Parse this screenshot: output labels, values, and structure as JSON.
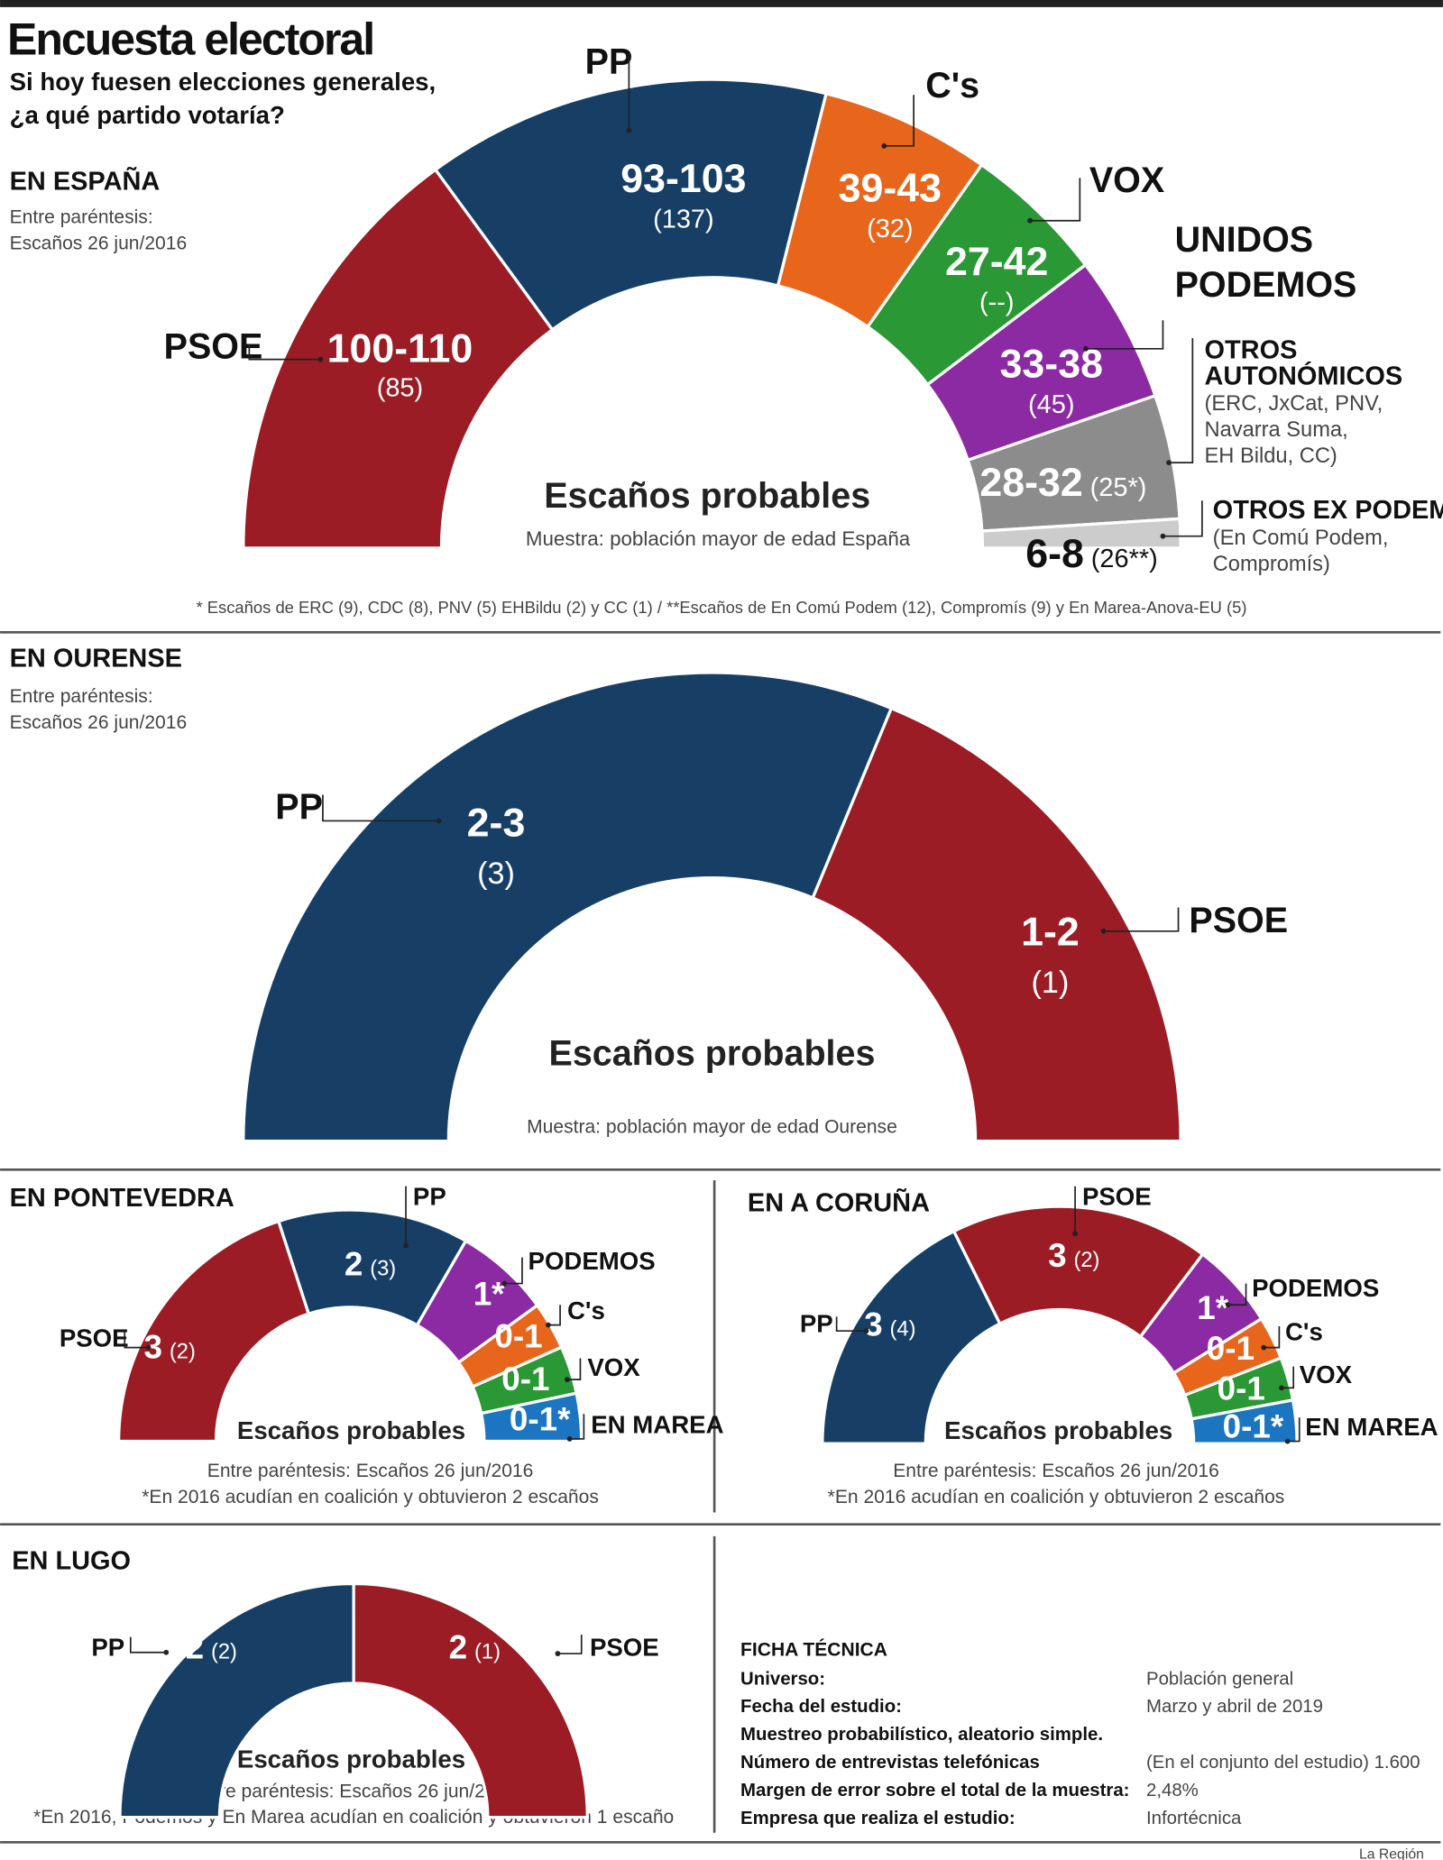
{
  "title": "Encuesta electoral",
  "subtitle": [
    "Si hoy fuesen elecciones generales,",
    "¿a qué partido votaría?"
  ],
  "center_label": "Escaños probables",
  "chart_data": [
    {
      "type": "semicircle-parliament",
      "id": "espana",
      "section": "EN ESPAÑA",
      "notes": [
        "Entre paréntesis:",
        "Escaños 26 jun/2016"
      ],
      "sample": "Muestra: población mayor de edad España",
      "footnote": "* Escaños de ERC (9), CDC (8), PNV (5) EHBildu (2) y CC (1)   /   **Escaños de En Comú Podem (12), Compromís (9) y En Marea-Anova-EU (5)",
      "segments": [
        {
          "name": [
            "PSOE"
          ],
          "seats": "100-110",
          "prev": "(85)",
          "color": "#9b1c24",
          "text_color": "#ffffff"
        },
        {
          "name": [
            "PP"
          ],
          "seats": "93-103",
          "prev": "(137)",
          "color": "#173f66",
          "text_color": "#ffffff"
        },
        {
          "name": [
            "C's"
          ],
          "seats": "39-43",
          "prev": "(32)",
          "color": "#e8651c",
          "text_color": "#ffffff"
        },
        {
          "name": [
            "VOX"
          ],
          "seats": "27-42",
          "prev": "(--)",
          "color": "#2a9835",
          "text_color": "#ffffff"
        },
        {
          "name": [
            "UNIDOS",
            "PODEMOS"
          ],
          "seats": "33-38",
          "prev": "(45)",
          "color": "#8b2aa2",
          "text_color": "#ffffff"
        },
        {
          "name": [
            "OTROS",
            "AUTONÓMICOS"
          ],
          "detail": [
            "(ERC, JxCat, PNV,",
            "Navarra Suma,",
            "EH Bildu, CC)"
          ],
          "seats": "28-32",
          "prev": "(25*)",
          "color": "#8c8c8c",
          "text_color": "#ffffff"
        },
        {
          "name": [
            "OTROS EX PODEMOS"
          ],
          "detail": [
            "(En Comú Podem,",
            "Compromís)"
          ],
          "seats": "6-8",
          "prev": "(26**)",
          "color": "#cccccc",
          "text_color": "#111111"
        }
      ]
    },
    {
      "type": "semicircle-parliament",
      "id": "ourense",
      "section": "EN OURENSE",
      "notes": [
        "Entre paréntesis:",
        "Escaños 26 jun/2016"
      ],
      "sample": "Muestra: población mayor de edad Ourense",
      "segments": [
        {
          "name": [
            "PP"
          ],
          "seats": "2-3",
          "prev": "(3)",
          "color": "#173f66",
          "text_color": "#ffffff"
        },
        {
          "name": [
            "PSOE"
          ],
          "seats": "1-2",
          "prev": "(1)",
          "color": "#9b1c24",
          "text_color": "#ffffff"
        }
      ]
    },
    {
      "type": "semicircle-parliament",
      "id": "pontevedra",
      "section": "EN PONTEVEDRA",
      "notes": [
        "Entre paréntesis: Escaños 26 jun/2016",
        "*En 2016 acudían en coalición y obtuvieron 2 escaños"
      ],
      "segments": [
        {
          "name": [
            "PSOE"
          ],
          "seats": "3",
          "prev": "(2)",
          "color": "#9b1c24",
          "text_color": "#ffffff"
        },
        {
          "name": [
            "PP"
          ],
          "seats": "2",
          "prev": "(3)",
          "color": "#173f66",
          "text_color": "#ffffff"
        },
        {
          "name": [
            "PODEMOS"
          ],
          "seats": "1*",
          "prev": "",
          "color": "#8b2aa2",
          "text_color": "#ffffff"
        },
        {
          "name": [
            "C's"
          ],
          "seats": "0-1",
          "prev": "",
          "color": "#e8651c",
          "text_color": "#ffffff"
        },
        {
          "name": [
            "VOX"
          ],
          "seats": "0-1",
          "prev": "",
          "color": "#2a9835",
          "text_color": "#ffffff"
        },
        {
          "name": [
            "EN MAREA"
          ],
          "seats": "0-1*",
          "prev": "",
          "color": "#1b75c0",
          "text_color": "#ffffff"
        }
      ]
    },
    {
      "type": "semicircle-parliament",
      "id": "coruna",
      "section": "EN A CORUÑA",
      "notes": [
        "Entre paréntesis: Escaños 26 jun/2016",
        "*En 2016 acudían en coalición y obtuvieron 2 escaños"
      ],
      "segments": [
        {
          "name": [
            "PP"
          ],
          "seats": "3",
          "prev": "(4)",
          "color": "#173f66",
          "text_color": "#ffffff"
        },
        {
          "name": [
            "PSOE"
          ],
          "seats": "3",
          "prev": "(2)",
          "color": "#9b1c24",
          "text_color": "#ffffff"
        },
        {
          "name": [
            "PODEMOS"
          ],
          "seats": "1*",
          "prev": "",
          "color": "#8b2aa2",
          "text_color": "#ffffff"
        },
        {
          "name": [
            "C's"
          ],
          "seats": "0-1",
          "prev": "",
          "color": "#e8651c",
          "text_color": "#ffffff"
        },
        {
          "name": [
            "VOX"
          ],
          "seats": "0-1",
          "prev": "",
          "color": "#2a9835",
          "text_color": "#ffffff"
        },
        {
          "name": [
            "EN MAREA"
          ],
          "seats": "0-1*",
          "prev": "",
          "color": "#1b75c0",
          "text_color": "#ffffff"
        }
      ]
    },
    {
      "type": "semicircle-parliament",
      "id": "lugo",
      "section": "EN LUGO",
      "notes": [
        "Entre paréntesis: Escaños 26 jun/2016",
        "*En 2016, Podemos y En Marea acudían en coalición y obtuvieron 1 escaño"
      ],
      "segments": [
        {
          "name": [
            "PP"
          ],
          "seats": "2",
          "prev": "(2)",
          "color": "#173f66",
          "text_color": "#ffffff"
        },
        {
          "name": [
            "PSOE"
          ],
          "seats": "2",
          "prev": "(1)",
          "color": "#9b1c24",
          "text_color": "#ffffff"
        }
      ]
    }
  ],
  "ficha": {
    "title": "FICHA TÉCNICA",
    "rows": [
      {
        "label": "Universo:",
        "value": "Población general"
      },
      {
        "label": "Fecha del estudio:",
        "value": "Marzo y abril de 2019"
      },
      {
        "label": "Muestreo probabilístico, aleatorio simple.",
        "value": ""
      },
      {
        "label": "Número de entrevistas telefónicas",
        "value": "(En el conjunto del estudio) 1.600"
      },
      {
        "label": "Margen de error sobre el total de la muestra:",
        "value": "2,48%"
      },
      {
        "label": "Empresa que realiza el estudio:",
        "value": "Infortécnica"
      }
    ]
  },
  "credit": "La Región"
}
